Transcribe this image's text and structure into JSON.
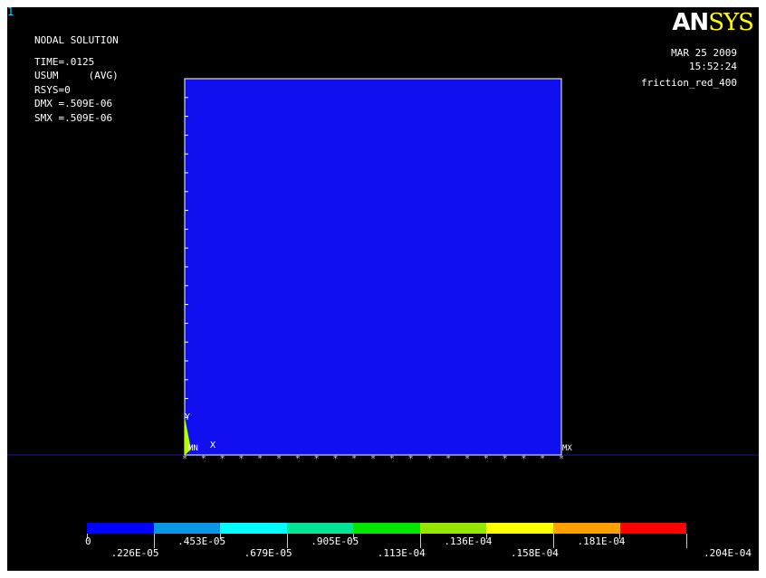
{
  "window": {
    "number": "1"
  },
  "info": {
    "title": "NODAL SOLUTION",
    "lines": [
      "TIME=.0125",
      "USUM     (AVG)",
      "RSYS=0",
      "DMX =.509E-06",
      "SMX =.509E-06"
    ]
  },
  "logo": {
    "an": "AN",
    "sys": "SYS"
  },
  "header_right": {
    "date": "MAR 25 2009",
    "time": "15:52:24",
    "jobname": "friction_red_400"
  },
  "model": {
    "fill_color": "#0f0fef",
    "triad_y": "Y",
    "triad_x": "X",
    "min_label": "MN",
    "max_label": "MX"
  },
  "legend": {
    "colors": [
      "#0000ff",
      "#0a96e6",
      "#00ffff",
      "#00e696",
      "#00e600",
      "#96e600",
      "#ffff00",
      "#ffa000",
      "#ff0000"
    ],
    "labels_top": [
      "0",
      ".453E-05",
      ".905E-05",
      ".136E-04",
      ".181E-04"
    ],
    "labels_bottom": [
      ".226E-05",
      ".679E-05",
      ".113E-04",
      ".158E-04",
      ".204E-04"
    ]
  }
}
